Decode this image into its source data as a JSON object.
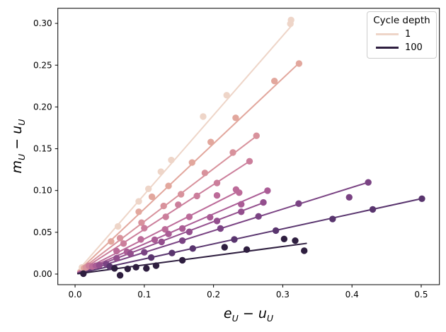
{
  "chart_data": {
    "type": "scatter",
    "title": "",
    "xlabel": "e_U − u_U",
    "ylabel": "m_U − u_U",
    "xlim": [
      -0.0249,
      0.5263
    ],
    "ylim": [
      -0.0127,
      0.3181
    ],
    "grid": false,
    "xticks": [
      {
        "v": 0.0,
        "label": "0.0"
      },
      {
        "v": 0.1,
        "label": "0.1"
      },
      {
        "v": 0.2,
        "label": "0.2"
      },
      {
        "v": 0.3,
        "label": "0.3"
      },
      {
        "v": 0.4,
        "label": "0.4"
      },
      {
        "v": 0.5,
        "label": "0.5"
      }
    ],
    "yticks": [
      {
        "v": 0.0,
        "label": "0.00"
      },
      {
        "v": 0.05,
        "label": "0.05"
      },
      {
        "v": 0.1,
        "label": "0.10"
      },
      {
        "v": 0.15,
        "label": "0.15"
      },
      {
        "v": 0.2,
        "label": "0.20"
      },
      {
        "v": 0.25,
        "label": "0.25"
      },
      {
        "v": 0.3,
        "label": "0.30"
      }
    ],
    "legend": {
      "title": "Cycle depth",
      "position": "upper right",
      "entries": [
        {
          "label": "1",
          "color": "#eed5c8"
        },
        {
          "label": "100",
          "color": "#2e1e3f"
        }
      ]
    },
    "series": [
      {
        "label": "1",
        "color": "#eed5c8",
        "line": [
          [
            0.004,
            0.004
          ],
          [
            0.313,
            0.2975
          ]
        ],
        "points": [
          [
            0.01,
            0.008
          ],
          [
            0.062,
            0.057
          ],
          [
            0.092,
            0.087
          ],
          [
            0.106,
            0.102
          ],
          [
            0.124,
            0.1225
          ],
          [
            0.139,
            0.1365
          ],
          [
            0.185,
            0.1885
          ],
          [
            0.219,
            0.214
          ],
          [
            0.311,
            0.2995
          ],
          [
            0.312,
            0.304
          ]
        ]
      },
      {
        "label": "",
        "color": "#e2a79d",
        "line": [
          [
            0.004,
            0.003
          ],
          [
            0.3235,
            0.2525
          ]
        ],
        "points": [
          [
            0.013,
            0.007
          ],
          [
            0.052,
            0.039
          ],
          [
            0.092,
            0.0745
          ],
          [
            0.111,
            0.0925
          ],
          [
            0.135,
            0.1055
          ],
          [
            0.169,
            0.1335
          ],
          [
            0.196,
            0.158
          ],
          [
            0.232,
            0.187
          ],
          [
            0.288,
            0.231
          ],
          [
            0.3235,
            0.252
          ]
        ]
      },
      {
        "label": "",
        "color": "#d8929c",
        "line": [
          [
            0.004,
            0.0025
          ],
          [
            0.263,
            0.1657
          ]
        ],
        "points": [
          [
            0.016,
            0.008
          ],
          [
            0.065,
            0.043
          ],
          [
            0.096,
            0.0615
          ],
          [
            0.128,
            0.0815
          ],
          [
            0.153,
            0.0955
          ],
          [
            0.1875,
            0.121
          ],
          [
            0.228,
            0.1455
          ],
          [
            0.262,
            0.1655
          ]
        ]
      },
      {
        "label": "",
        "color": "#cb7e9b",
        "line": [
          [
            0.004,
            0.002
          ],
          [
            0.252,
            0.135
          ]
        ],
        "points": [
          [
            0.02,
            0.01
          ],
          [
            0.07,
            0.0365
          ],
          [
            0.1,
            0.055
          ],
          [
            0.131,
            0.0685
          ],
          [
            0.149,
            0.083
          ],
          [
            0.176,
            0.0935
          ],
          [
            0.205,
            0.109
          ],
          [
            0.252,
            0.135
          ]
        ]
      },
      {
        "label": "",
        "color": "#bc6b99",
        "line": [
          [
            0.004,
            0.0017
          ],
          [
            0.238,
            0.1
          ]
        ],
        "points": [
          [
            0.025,
            0.009
          ],
          [
            0.06,
            0.0275
          ],
          [
            0.095,
            0.0415
          ],
          [
            0.13,
            0.0535
          ],
          [
            0.165,
            0.0685
          ],
          [
            0.205,
            0.0941
          ],
          [
            0.2325,
            0.1012
          ],
          [
            0.237,
            0.0975
          ]
        ]
      },
      {
        "label": "",
        "color": "#aa5c95",
        "line": [
          [
            0.004,
            0.0015
          ],
          [
            0.278,
            0.1
          ]
        ],
        "points": [
          [
            0.03,
            0.01
          ],
          [
            0.075,
            0.0265
          ],
          [
            0.115,
            0.041
          ],
          [
            0.135,
            0.048
          ],
          [
            0.155,
            0.0545
          ],
          [
            0.195,
            0.068
          ],
          [
            0.24,
            0.0835
          ],
          [
            0.278,
            0.0998
          ]
        ]
      },
      {
        "label": "",
        "color": "#934e8d",
        "line": [
          [
            0.004,
            0.0013
          ],
          [
            0.273,
            0.0856
          ]
        ],
        "points": [
          [
            0.035,
            0.0105
          ],
          [
            0.06,
            0.019
          ],
          [
            0.08,
            0.0245
          ],
          [
            0.125,
            0.0385
          ],
          [
            0.165,
            0.0505
          ],
          [
            0.205,
            0.0635
          ],
          [
            0.24,
            0.0745
          ],
          [
            0.272,
            0.0857
          ]
        ]
      },
      {
        "label": "",
        "color": "#7a4383",
        "line": [
          [
            0.004,
            0.001
          ],
          [
            0.4235,
            0.1098
          ]
        ],
        "points": [
          [
            0.045,
            0.012
          ],
          [
            0.1,
            0.026
          ],
          [
            0.155,
            0.04
          ],
          [
            0.21,
            0.0545
          ],
          [
            0.265,
            0.069
          ],
          [
            0.323,
            0.0843
          ],
          [
            0.396,
            0.0919
          ],
          [
            0.4235,
            0.1097
          ]
        ]
      },
      {
        "label": "",
        "color": "#59356e",
        "line": [
          [
            0.004,
            0.0008
          ],
          [
            0.501,
            0.0903
          ]
        ],
        "points": [
          [
            0.05,
            0.009
          ],
          [
            0.11,
            0.0198
          ],
          [
            0.14,
            0.0252
          ],
          [
            0.17,
            0.0306
          ],
          [
            0.23,
            0.0414
          ],
          [
            0.29,
            0.052
          ],
          [
            0.372,
            0.0659
          ],
          [
            0.43,
            0.0774
          ],
          [
            0.501,
            0.0902
          ]
        ]
      },
      {
        "label": "100",
        "color": "#2e1e3f",
        "line": [
          [
            0.004,
            0.0004
          ],
          [
            0.334,
            0.0367
          ]
        ],
        "points": [
          [
            0.012,
            0.0005
          ],
          [
            0.057,
            0.0068
          ],
          [
            0.065,
            -0.0015
          ],
          [
            0.076,
            0.0062
          ],
          [
            0.088,
            0.0082
          ],
          [
            0.103,
            0.0068
          ],
          [
            0.117,
            0.0101
          ],
          [
            0.155,
            0.0165
          ],
          [
            0.216,
            0.0321
          ],
          [
            0.248,
            0.0293
          ],
          [
            0.302,
            0.042
          ],
          [
            0.318,
            0.04
          ],
          [
            0.331,
            0.0279
          ]
        ]
      }
    ]
  }
}
